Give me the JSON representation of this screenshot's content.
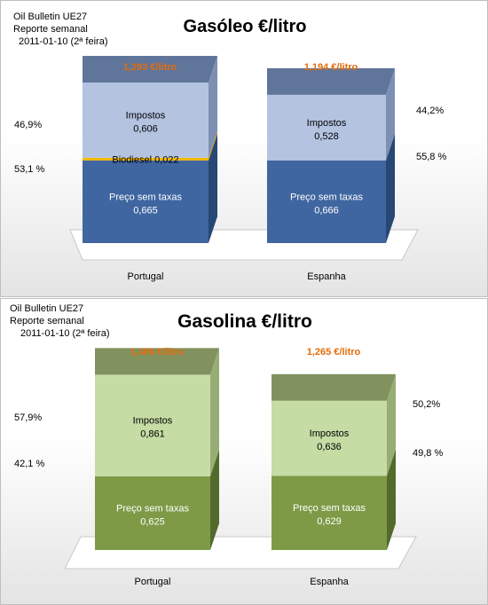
{
  "chart_data": [
    {
      "type": "bar",
      "stacked": true,
      "title": "Gasóleo €/litro",
      "header": [
        "Oil Bulletin UE27",
        "Reporte semanal",
        "2011-01-10 (2ª feira)"
      ],
      "categories": [
        "Portugal",
        "Espanha"
      ],
      "totals": [
        "1,293 €/litro",
        "1,194 €/litro"
      ],
      "series": [
        {
          "name": "Preço sem taxas",
          "values": [
            0.665,
            0.666
          ],
          "labels": [
            "0,665",
            "0,666"
          ]
        },
        {
          "name": "Biodiesel",
          "values": [
            0.022,
            0
          ],
          "labels": [
            "0,022",
            ""
          ]
        },
        {
          "name": "Impostos",
          "values": [
            0.606,
            0.528
          ],
          "labels": [
            "0,606",
            "0,528"
          ]
        }
      ],
      "percent_labels": [
        {
          "tax": "46,9%",
          "base": "53,1 %"
        },
        {
          "tax": "44,2%",
          "base": "55,8 %"
        }
      ],
      "ylim": [
        0,
        1.4
      ],
      "colors": {
        "base": "#3f66a0",
        "biodiesel": "#f5b800",
        "tax": "#b3c3e0",
        "top": "#60759a",
        "side_base": "#274774",
        "side_tax": "#7e8fb4",
        "total_label": "#e46c0a"
      },
      "grid": false
    },
    {
      "type": "bar",
      "stacked": true,
      "title": "Gasolina €/litro",
      "header": [
        "Oil Bulletin UE27",
        "Reporte semanal",
        "2011-01-10 (2ª feira)"
      ],
      "categories": [
        "Portugal",
        "Espanha"
      ],
      "totals": [
        "1,486 €/litro",
        "1,265 €/litro"
      ],
      "series": [
        {
          "name": "Preço sem taxas",
          "values": [
            0.625,
            0.629
          ],
          "labels": [
            "0,625",
            "0,629"
          ]
        },
        {
          "name": "Impostos",
          "values": [
            0.861,
            0.636
          ],
          "labels": [
            "0,861",
            "0,636"
          ]
        }
      ],
      "percent_labels": [
        {
          "tax": "57,9%",
          "base": "42,1 %"
        },
        {
          "tax": "50,2%",
          "base": "49,8 %"
        }
      ],
      "ylim": [
        0,
        1.6
      ],
      "colors": {
        "base": "#7e9a47",
        "tax": "#c5dca4",
        "top": "#82925f",
        "side_base": "#536a2c",
        "side_tax": "#97ad73",
        "total_label": "#e46c0a"
      },
      "grid": false
    }
  ]
}
